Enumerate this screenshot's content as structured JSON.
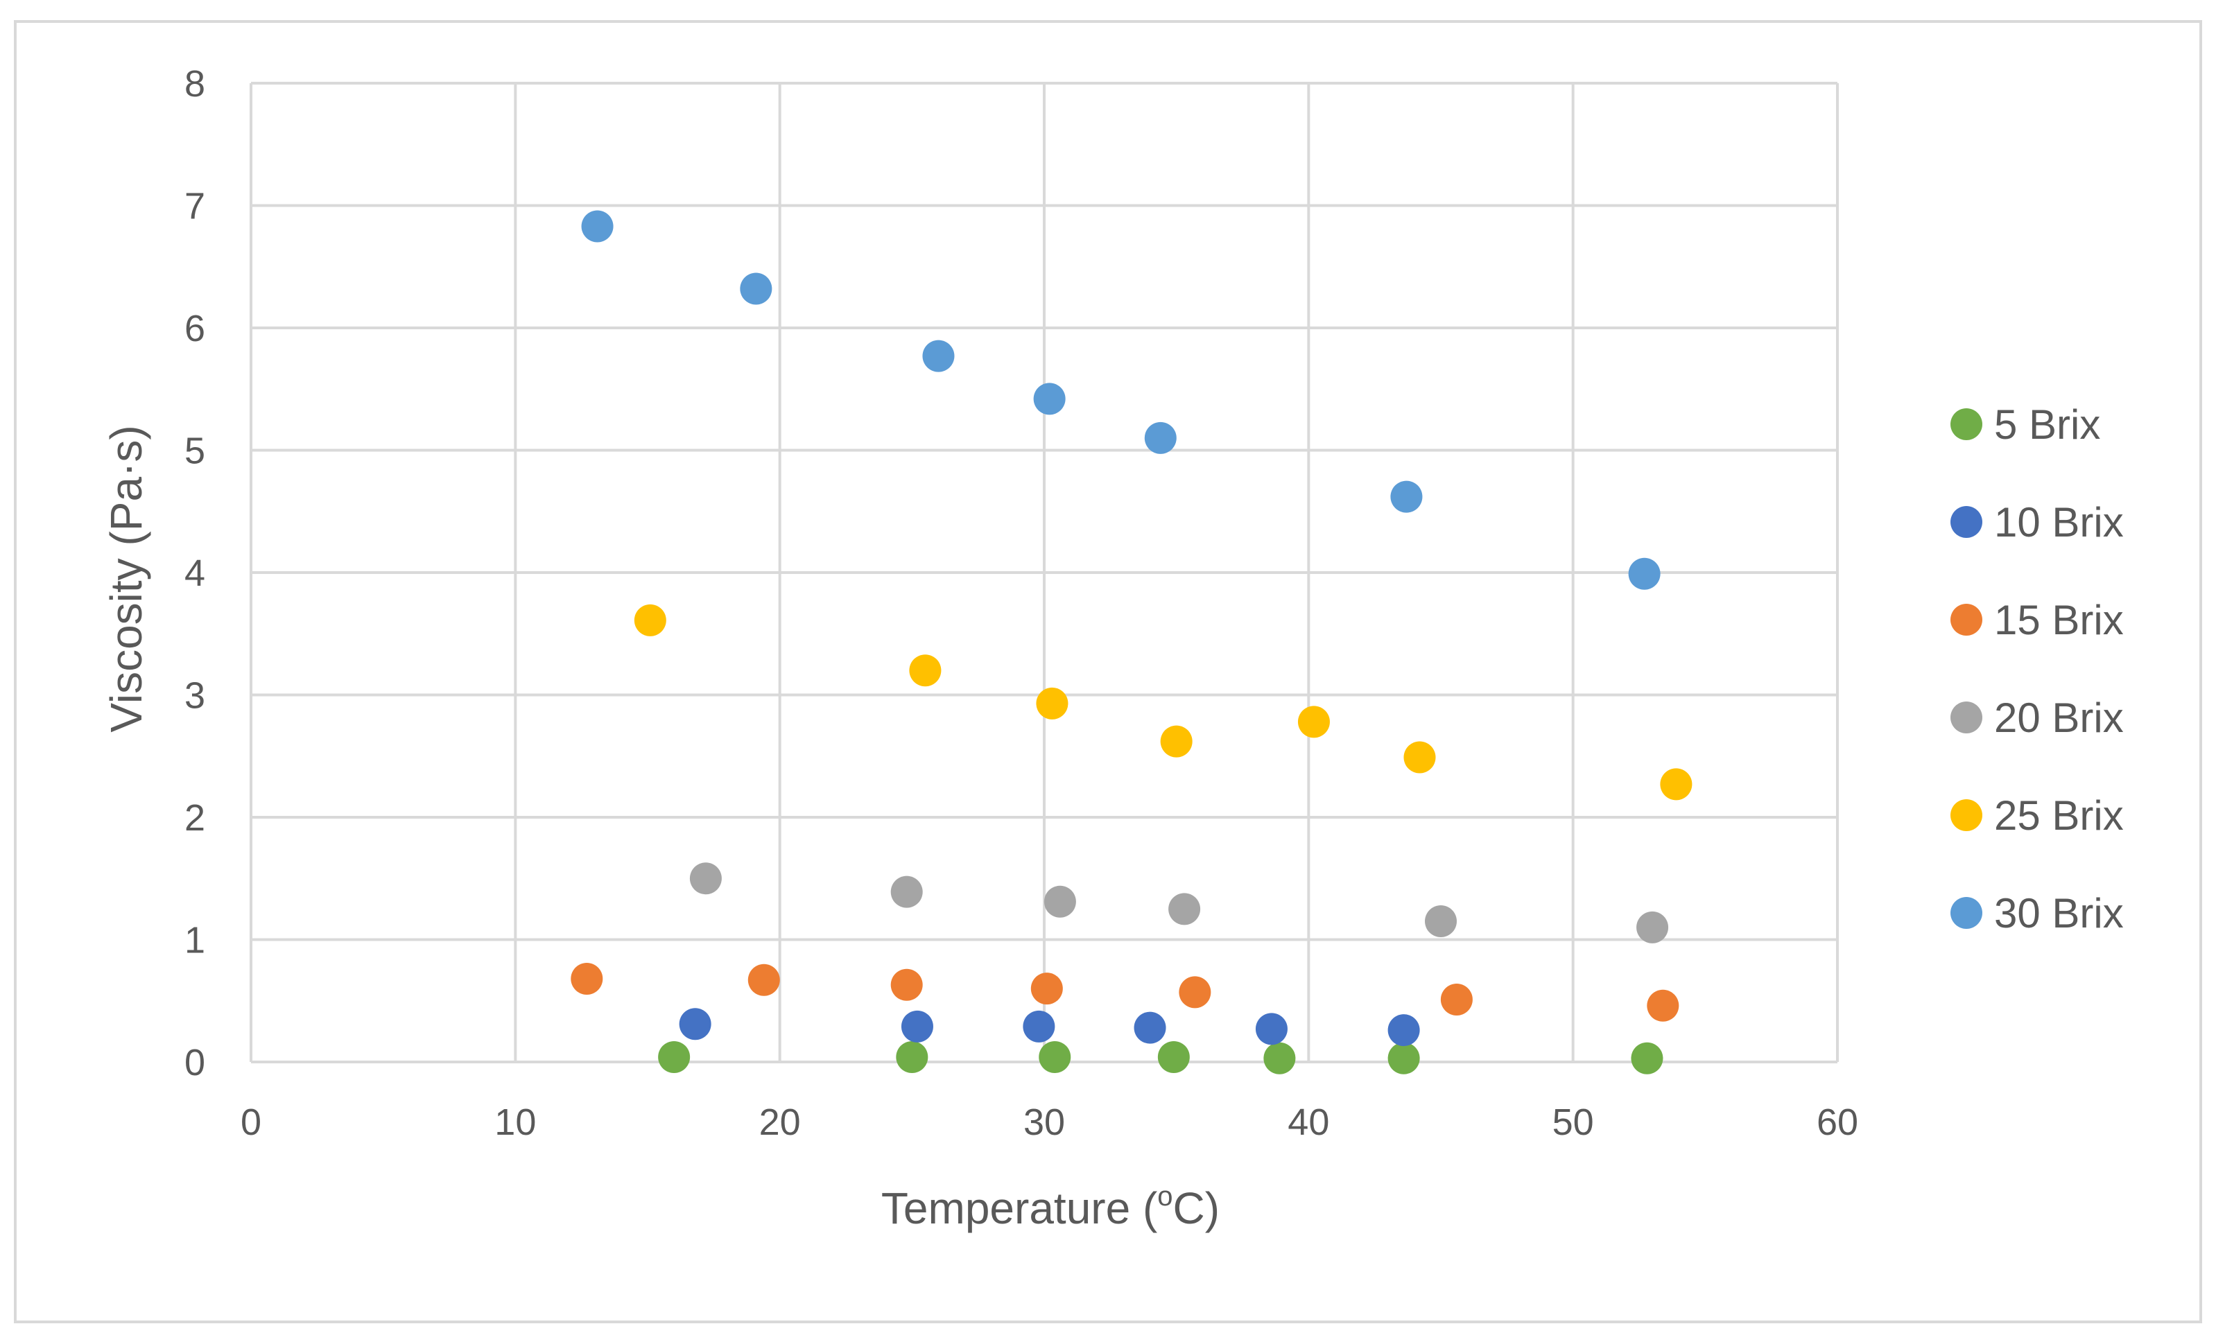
{
  "chart_data": {
    "type": "scatter",
    "title": "",
    "xlabel": "Temperature (",
    "xlabel_sup": "o",
    "xlabel_tail": "C)",
    "ylabel": "Viscosity (Pa·s)",
    "xlim": [
      0,
      60
    ],
    "ylim": [
      0,
      8
    ],
    "xticks": [
      0,
      10,
      20,
      30,
      40,
      50,
      60
    ],
    "yticks": [
      0,
      1,
      2,
      3,
      4,
      5,
      6,
      7,
      8
    ],
    "grid": true,
    "legend_position": "right",
    "series": [
      {
        "name": "5 Brix",
        "color": "#70AD47",
        "points": [
          [
            16.0,
            0.04
          ],
          [
            25.0,
            0.04
          ],
          [
            30.4,
            0.04
          ],
          [
            34.9,
            0.04
          ],
          [
            38.9,
            0.03
          ],
          [
            43.6,
            0.03
          ],
          [
            52.8,
            0.03
          ]
        ]
      },
      {
        "name": "10 Brix",
        "color": "#4472C4",
        "points": [
          [
            16.8,
            0.31
          ],
          [
            25.2,
            0.29
          ],
          [
            29.8,
            0.29
          ],
          [
            34.0,
            0.28
          ],
          [
            38.6,
            0.27
          ],
          [
            43.6,
            0.26
          ]
        ]
      },
      {
        "name": "15 Brix",
        "color": "#ED7D31",
        "points": [
          [
            12.7,
            0.68
          ],
          [
            19.4,
            0.67
          ],
          [
            24.8,
            0.63
          ],
          [
            30.1,
            0.6
          ],
          [
            35.7,
            0.57
          ],
          [
            45.6,
            0.51
          ],
          [
            53.4,
            0.46
          ]
        ]
      },
      {
        "name": "20 Brix",
        "color": "#A5A5A5",
        "points": [
          [
            17.2,
            1.5
          ],
          [
            24.8,
            1.39
          ],
          [
            30.6,
            1.31
          ],
          [
            35.3,
            1.25
          ],
          [
            45.0,
            1.15
          ],
          [
            53.0,
            1.1
          ]
        ]
      },
      {
        "name": "25 Brix",
        "color": "#FFC000",
        "points": [
          [
            15.1,
            3.61
          ],
          [
            25.5,
            3.2
          ],
          [
            30.3,
            2.93
          ],
          [
            35.0,
            2.62
          ],
          [
            40.2,
            2.78
          ],
          [
            44.2,
            2.49
          ],
          [
            53.9,
            2.27
          ]
        ]
      },
      {
        "name": "30 Brix",
        "color": "#5B9BD5",
        "points": [
          [
            13.1,
            6.83
          ],
          [
            19.1,
            6.32
          ],
          [
            26.0,
            5.77
          ],
          [
            30.2,
            5.42
          ],
          [
            34.4,
            5.1
          ],
          [
            43.7,
            4.62
          ],
          [
            52.7,
            3.99
          ]
        ]
      }
    ]
  }
}
